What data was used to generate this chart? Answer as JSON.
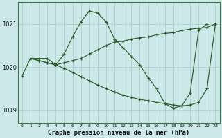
{
  "title": "Graphe pression niveau de la mer (hPa)",
  "bg_color": "#cce8e8",
  "line_color": "#2a5c2a",
  "hours": [
    0,
    1,
    2,
    3,
    4,
    5,
    6,
    7,
    8,
    9,
    10,
    11,
    12,
    13,
    14,
    15,
    16,
    17,
    18,
    19,
    20,
    21,
    22,
    23
  ],
  "series1": [
    1019.8,
    1020.2,
    1020.2,
    1020.2,
    1020.05,
    1020.3,
    1020.7,
    1021.05,
    1021.3,
    1021.25,
    1021.05,
    1020.65,
    1020.45,
    1020.25,
    1020.05,
    1019.75,
    1019.5,
    1019.15,
    1019.05,
    1019.1,
    1019.4,
    1020.85,
    1021.0,
    null
  ],
  "series2": [
    null,
    1020.2,
    1020.15,
    1020.1,
    1020.05,
    1020.1,
    1020.15,
    1020.2,
    1020.3,
    1020.4,
    1020.5,
    1020.58,
    1020.6,
    1020.65,
    1020.68,
    1020.7,
    1020.75,
    1020.78,
    1020.8,
    1020.85,
    1020.88,
    1020.9,
    1020.92,
    1021.0
  ],
  "series3": [
    null,
    1020.2,
    1020.15,
    1020.1,
    1020.05,
    1019.97,
    1019.88,
    1019.78,
    1019.68,
    1019.58,
    1019.5,
    1019.42,
    1019.35,
    1019.3,
    1019.25,
    1019.22,
    1019.18,
    1019.15,
    1019.12,
    1019.1,
    1019.12,
    1019.18,
    1019.5,
    1021.0
  ],
  "ylim": [
    1018.7,
    1021.5
  ],
  "yticks": [
    1019,
    1020,
    1021
  ],
  "grid_color": "#aacccc",
  "spine_color": "#3a7a3a"
}
